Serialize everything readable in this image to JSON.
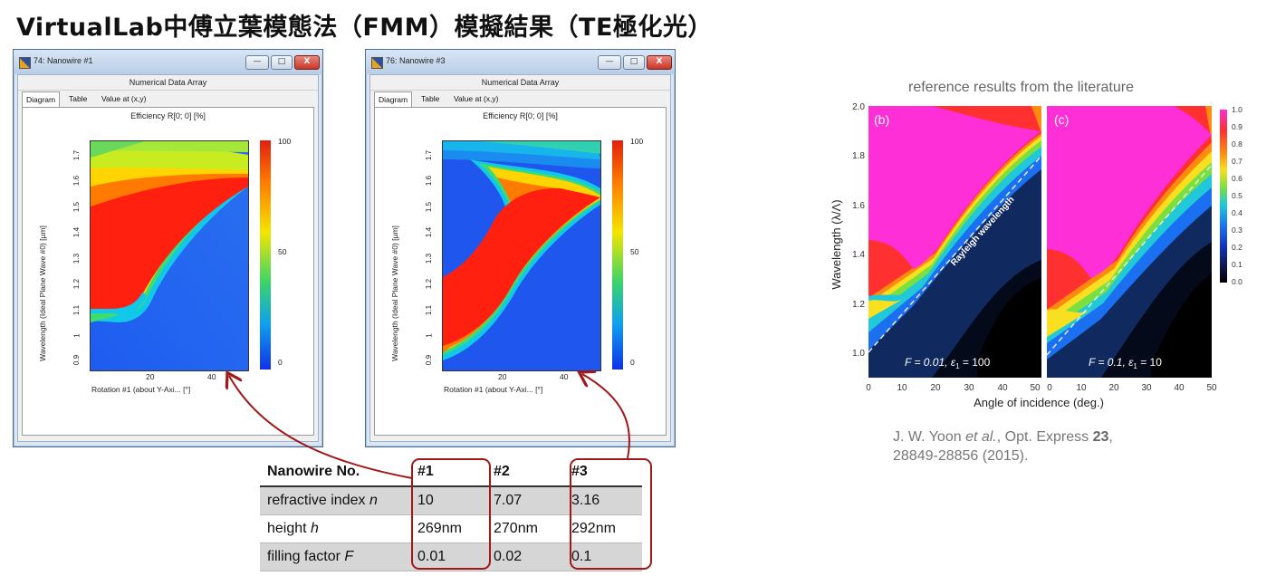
{
  "page": {
    "title": "VirtualLab中傅立葉模態法（FMM）模擬結果（TE極化光）"
  },
  "windows": [
    {
      "title": "74: Nanowire #1",
      "subtitle": "Numerical Data Array",
      "tabs": [
        "Diagram",
        "Table",
        "Value at (x,y)"
      ],
      "active_tab": "Diagram",
      "buttons": {
        "minimize": "—",
        "maximize": "□",
        "close": "X"
      },
      "chart_title": "Efficiency R[0; 0]  [%]",
      "ylabel": "Wavelength (Ideal Plane Wave #0) [µm]",
      "xlabel": "Rotation #1 (about Y-Axi... [°]",
      "yticks": [
        "0.9",
        "1",
        "1.1",
        "1.2",
        "1.3",
        "1.4",
        "1.5",
        "1.6",
        "1.7"
      ],
      "xticks": [
        "20",
        "40"
      ],
      "colorbar_labels": [
        "100",
        "50",
        "0"
      ]
    },
    {
      "title": "76: Nanowire #3",
      "subtitle": "Numerical Data Array",
      "tabs": [
        "Diagram",
        "Table",
        "Value at (x,y)"
      ],
      "active_tab": "Diagram",
      "buttons": {
        "minimize": "—",
        "maximize": "□",
        "close": "X"
      },
      "chart_title": "Efficiency R[0; 0]  [%]",
      "ylabel": "Wavelength (Ideal Plane Wave #0) [µm]",
      "xlabel": "Rotation #1 (about Y-Axi... [°]",
      "yticks": [
        "0.9",
        "1",
        "1.1",
        "1.2",
        "1.3",
        "1.4",
        "1.5",
        "1.6",
        "1.7"
      ],
      "xticks": [
        "20",
        "40"
      ],
      "colorbar_labels": [
        "100",
        "50",
        "0"
      ]
    }
  ],
  "table": {
    "headers": [
      "Nanowire No.",
      "#1",
      "#2",
      "#3"
    ],
    "rows": [
      {
        "label": "refractive index",
        "symbol": "n",
        "values": [
          "10",
          "7.07",
          "3.16"
        ]
      },
      {
        "label": "height",
        "symbol": "h",
        "values": [
          "269nm",
          "270nm",
          "292nm"
        ]
      },
      {
        "label": "filling factor",
        "symbol": "F",
        "values": [
          "0.01",
          "0.02",
          "0.1"
        ]
      }
    ]
  },
  "reference": {
    "title": "reference results from the literature",
    "ylabel": "Wavelength (λ/Λ)",
    "xlabel": "Angle of incidence (deg.)",
    "yticks": [
      "1.0",
      "1.2",
      "1.4",
      "1.6",
      "1.8",
      "2.0"
    ],
    "xticks_left": [
      "0",
      "10",
      "20",
      "30",
      "40",
      "50"
    ],
    "xticks_right": [
      "0",
      "10",
      "20",
      "30",
      "40",
      "50"
    ],
    "panel_b": {
      "label": "(b)",
      "param_F": "F = 0.01, ",
      "param_eps": "ε",
      "param_eps_sub": "1",
      "param_eps_val": " = 100"
    },
    "panel_c": {
      "label": "(c)",
      "param_F": "F = 0.1, ",
      "param_eps": "ε",
      "param_eps_sub": "1",
      "param_eps_val": " = 10"
    },
    "rayleigh_label": "Rayleigh wavelength",
    "colorbar_labels": [
      "1.0",
      "0.9",
      "0.8",
      "0.7",
      "0.6",
      "0.5",
      "0.4",
      "0.3",
      "0.2",
      "0.1",
      "0.0"
    ],
    "citation": {
      "authors": "J. W. Yoon ",
      "etal": "et al.",
      "journal": ", Opt. Express ",
      "volume": "23",
      "pages_line2": "28849-28856 (2015)."
    }
  },
  "colors": {
    "highlight": "#a01818",
    "window_frame": "#4a6f95"
  }
}
